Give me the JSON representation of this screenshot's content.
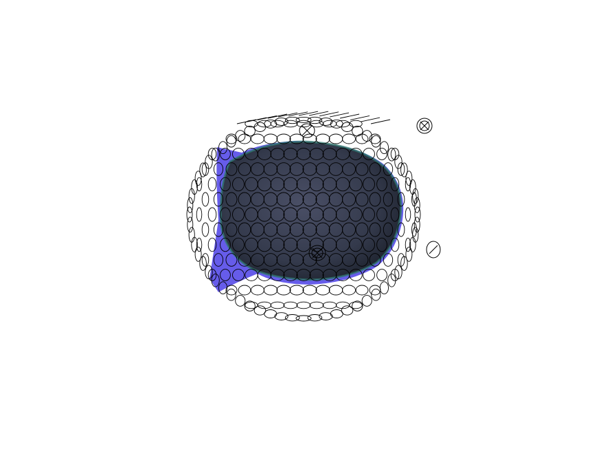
{
  "scene": {
    "background_color": "#ffffff",
    "outer_hull_color": "#5a4fe0",
    "inner_body_color": "#3a3f52",
    "inner_rim_color": "#2f7a6e",
    "sensor_outline_color": "#000000",
    "icons": [
      "head-mesh-icon",
      "fiducial-marker-icon"
    ]
  }
}
